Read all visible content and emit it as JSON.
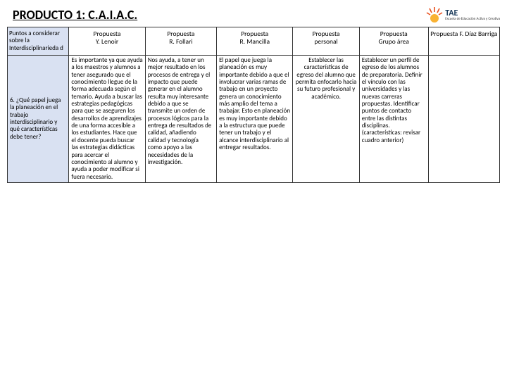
{
  "title": "PRODUCTO 1:  C.A.I.A.C.",
  "logo": {
    "name": "TAE",
    "sub": "Escuela de Educación Activa y Creativa",
    "sun_color": "#f9b233",
    "ray_color": "#e94e1b",
    "text_color": "#1a3a5a"
  },
  "columns": [
    "Puntos a considerar sobre la Interdisciplinarieda d",
    "Propuesta\nY. Lenoir",
    "Propuesta\nR. Follari",
    "Propuesta\nR. Mancilla",
    "Propuesta\npersonal",
    "Propuesta\nGrupo área",
    "Propuesta F. Díaz Barriga"
  ],
  "row": {
    "head": "6. ¿Qué papel juega la planeación en el trabajo interdisciplinario y qué características debe tener?",
    "cells": [
      "Es importante ya que ayuda a los maestros y alumnos a tener asegurado que el conocimiento llegue de la forma adecuada según el temario. Ayuda a buscar las estrategias pedagógicas para que se aseguren los desarrollos de aprendizajes de una forma accesible a los estudiantes. Hace que el docente pueda buscar las estrategias didácticas para acercar el conocimiento al alumno y ayuda a poder modificar si fuera necesario.",
      "Nos ayuda, a tener un mejor resultado en los procesos de entrega y el impacto que puede generar en el alumno resulta muy interesante debido a que se transmite un orden de procesos lógicos para la entrega de resultados de calidad, añadiendo calidad y tecnología como apoyo a las necesidades de la investigación.",
      "El papel que juega la planeación es muy importante debido a que el involucrar varias ramas de trabajo en un proyecto genera un conocimiento más amplio del tema a trabajar. Esto en planeación es muy importante debido a la estructura que puede tener un trabajo y el alcance interdisciplinario al entregar resultados.",
      "Establecer las características de egreso del alumno que permita enfocarlo hacia su futuro profesional y académico.",
      "Establecer un perfil de egreso de los alumnos de preparatoria. Definir el vínculo con las universidades y las nuevas carreras propuestas. Identificar puntos de contacto entre las distintas disciplinas. (características: revisar cuadro anterior)",
      ""
    ]
  },
  "cell4_align": "center"
}
